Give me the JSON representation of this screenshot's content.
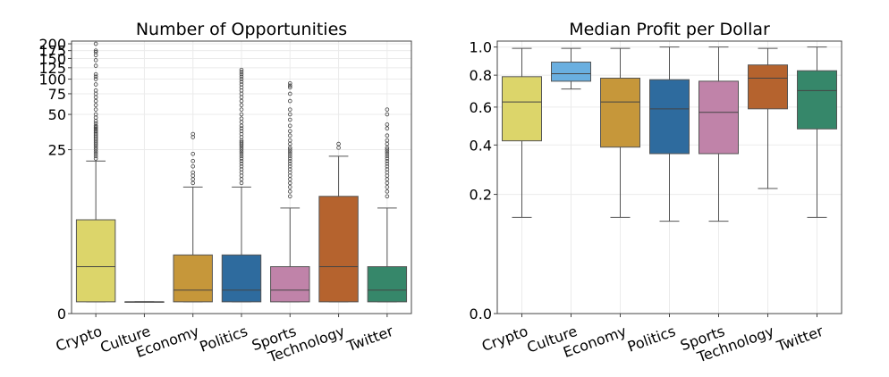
{
  "chart_data": [
    {
      "type": "box",
      "title": "Number of Opportunities",
      "xlabel": "",
      "ylabel": "",
      "y_scale": "symlog",
      "yticks": [
        0,
        25,
        50,
        75,
        100,
        125,
        150,
        175,
        200
      ],
      "ytick_labels": [
        "0",
        "25",
        "50",
        "75",
        "100",
        "125",
        "150",
        "175",
        "200"
      ],
      "categories": [
        "Crypto",
        "Culture",
        "Economy",
        "Politics",
        "Sports",
        "Technology",
        "Twitter"
      ],
      "colors": [
        "#dcd56a",
        "#6aafe0",
        "#c6973a",
        "#2e6b9e",
        "#c083a9",
        "#b5632e",
        "#36876a"
      ],
      "boxes": [
        {
          "min": 1,
          "q1": 1,
          "median": 4,
          "q3": 8,
          "max": 20,
          "outliers": [
            21,
            22,
            23,
            24,
            25,
            26,
            27,
            28,
            29,
            30,
            31,
            32,
            33,
            34,
            35,
            36,
            37,
            38,
            39,
            40,
            42,
            44,
            47,
            50,
            55,
            60,
            65,
            70,
            75,
            80,
            90,
            100,
            105,
            110,
            130,
            145,
            160,
            170,
            175,
            200
          ]
        },
        {
          "min": 1,
          "q1": 1,
          "median": 1,
          "q3": 1,
          "max": 1,
          "outliers": []
        },
        {
          "min": 1,
          "q1": 1,
          "median": 2,
          "q3": 5,
          "max": 12,
          "outliers": [
            13,
            14,
            15,
            16,
            18,
            20,
            23,
            32,
            34
          ]
        },
        {
          "min": 1,
          "q1": 1,
          "median": 2,
          "q3": 5,
          "max": 12,
          "outliers": [
            13,
            14,
            15,
            16,
            17,
            18,
            19,
            20,
            21,
            22,
            23,
            24,
            25,
            26,
            27,
            28,
            29,
            30,
            32,
            34,
            36,
            38,
            40,
            43,
            46,
            50,
            55,
            60,
            65,
            70,
            75,
            80,
            85,
            90,
            95,
            100,
            105,
            110,
            115,
            120
          ]
        },
        {
          "min": 1,
          "q1": 1,
          "median": 2,
          "q3": 4,
          "max": 9,
          "outliers": [
            10,
            11,
            12,
            13,
            14,
            15,
            16,
            17,
            18,
            19,
            20,
            21,
            22,
            23,
            24,
            25,
            26,
            28,
            30,
            33,
            36,
            40,
            45,
            50,
            55,
            65,
            75,
            85,
            88,
            92
          ]
        },
        {
          "min": 1,
          "q1": 1,
          "median": 4,
          "q3": 10,
          "max": 22,
          "outliers": [
            26,
            28
          ]
        },
        {
          "min": 1,
          "q1": 1,
          "median": 2,
          "q3": 4,
          "max": 9,
          "outliers": [
            10,
            11,
            12,
            13,
            14,
            15,
            16,
            17,
            18,
            19,
            20,
            21,
            22,
            23,
            24,
            25,
            26,
            28,
            30,
            33,
            38,
            41,
            50,
            55
          ]
        }
      ]
    },
    {
      "type": "box",
      "title": "Median Profit per Dollar",
      "xlabel": "",
      "ylabel": "",
      "y_scale": "sqrt",
      "yticks": [
        0.0,
        0.2,
        0.4,
        0.6,
        0.8,
        1.0
      ],
      "ytick_labels": [
        "0.0",
        "0.2",
        "0.4",
        "0.6",
        "0.8",
        "1.0"
      ],
      "categories": [
        "Crypto",
        "Culture",
        "Economy",
        "Politics",
        "Sports",
        "Technology",
        "Twitter"
      ],
      "colors": [
        "#dcd56a",
        "#6aafe0",
        "#c6973a",
        "#2e6b9e",
        "#c083a9",
        "#b5632e",
        "#36876a"
      ],
      "boxes": [
        {
          "min": 0.13,
          "q1": 0.42,
          "median": 0.63,
          "q3": 0.79,
          "max": 0.99,
          "outliers": []
        },
        {
          "min": 0.71,
          "q1": 0.76,
          "median": 0.81,
          "q3": 0.89,
          "max": 0.99,
          "outliers": []
        },
        {
          "min": 0.13,
          "q1": 0.39,
          "median": 0.63,
          "q3": 0.78,
          "max": 0.99,
          "outliers": []
        },
        {
          "min": 0.12,
          "q1": 0.36,
          "median": 0.59,
          "q3": 0.77,
          "max": 1.0,
          "outliers": []
        },
        {
          "min": 0.12,
          "q1": 0.36,
          "median": 0.57,
          "q3": 0.76,
          "max": 1.0,
          "outliers": []
        },
        {
          "min": 0.22,
          "q1": 0.59,
          "median": 0.78,
          "q3": 0.87,
          "max": 0.99,
          "outliers": []
        },
        {
          "min": 0.13,
          "q1": 0.48,
          "median": 0.7,
          "q3": 0.83,
          "max": 1.0,
          "outliers": []
        }
      ]
    }
  ]
}
